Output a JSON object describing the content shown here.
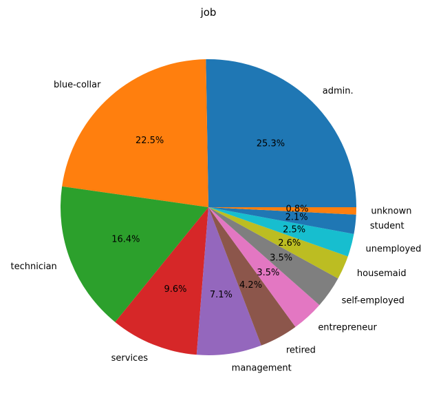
{
  "chart_data": {
    "type": "pie",
    "title": "job",
    "start_angle_deg": 0,
    "direction": "counterclockwise",
    "slices": [
      {
        "label": "admin.",
        "percent_label": "25.3%",
        "value": 25.3,
        "color": "#1f77b4"
      },
      {
        "label": "blue-collar",
        "percent_label": "22.5%",
        "value": 22.5,
        "color": "#ff7f0e"
      },
      {
        "label": "technician",
        "percent_label": "16.4%",
        "value": 16.4,
        "color": "#2ca02c"
      },
      {
        "label": "services",
        "percent_label": "9.6%",
        "value": 9.6,
        "color": "#d62728"
      },
      {
        "label": "management",
        "percent_label": "7.1%",
        "value": 7.1,
        "color": "#9467bd"
      },
      {
        "label": "retired",
        "percent_label": "4.2%",
        "value": 4.2,
        "color": "#8c564b"
      },
      {
        "label": "entrepreneur",
        "percent_label": "3.5%",
        "value": 3.5,
        "color": "#e377c2"
      },
      {
        "label": "self-employed",
        "percent_label": "3.5%",
        "value": 3.5,
        "color": "#7f7f7f"
      },
      {
        "label": "housemaid",
        "percent_label": "2.6%",
        "value": 2.6,
        "color": "#bcbd22"
      },
      {
        "label": "unemployed",
        "percent_label": "2.5%",
        "value": 2.5,
        "color": "#17becf"
      },
      {
        "label": "student",
        "percent_label": "2.1%",
        "value": 2.1,
        "color": "#1f77b4"
      },
      {
        "label": "unknown",
        "percent_label": "0.8%",
        "value": 0.8,
        "color": "#ff7f0e"
      }
    ]
  }
}
